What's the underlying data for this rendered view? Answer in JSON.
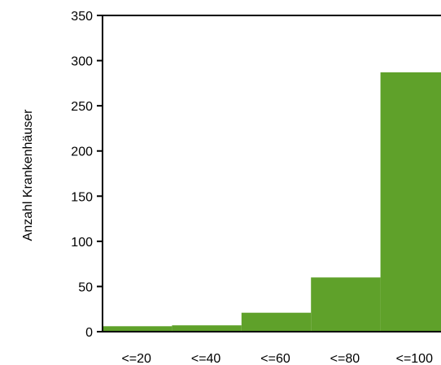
{
  "chart_data": {
    "type": "bar",
    "categories": [
      "<=20",
      "<=40",
      "<=60",
      "<=80",
      "<=100"
    ],
    "values": [
      6,
      7,
      21,
      60,
      287
    ],
    "title": "",
    "xlabel": "",
    "ylabel": "Anzahl Krankenhäuser",
    "ylim": [
      0,
      350
    ],
    "yticks": [
      0,
      50,
      100,
      150,
      200,
      250,
      300,
      350
    ],
    "grid": false,
    "legend": "none",
    "bar_color": "#5fa12a",
    "axis_color": "#000000"
  }
}
